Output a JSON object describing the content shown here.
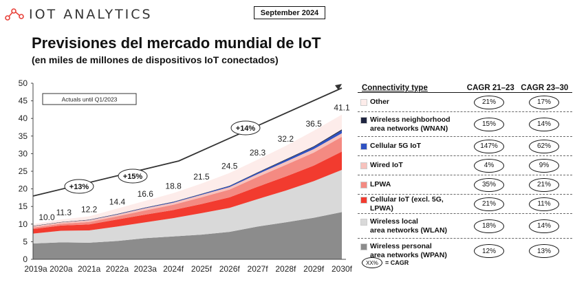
{
  "brand": {
    "logo_text": "IOT ANALYTICS"
  },
  "date_label": "September 2024",
  "title": "Previsiones del mercado mundial de IoT",
  "subtitle": "(en miles de millones de dispositivos IoT conectados)",
  "chart_data": {
    "type": "area",
    "stacked": true,
    "categories": [
      "2019a",
      "2020a",
      "2021a",
      "2022a",
      "2023a",
      "2024f",
      "2025f",
      "2026f",
      "2027f",
      "2028f",
      "2029f",
      "2030f"
    ],
    "totals": [
      10.0,
      11.3,
      12.2,
      14.4,
      16.6,
      18.8,
      21.5,
      24.5,
      28.3,
      32.2,
      36.5,
      41.1
    ],
    "ylim": [
      0,
      50
    ],
    "yticks": [
      0,
      5,
      10,
      15,
      20,
      25,
      30,
      35,
      40,
      45,
      50
    ],
    "grid": false,
    "annotation_box": "Actuals until Q1/2023",
    "trend_labels": [
      "+13%",
      "+15%",
      "+14%"
    ],
    "series": [
      {
        "name": "Wireless personal area networks (WPAN)",
        "color": "#8c8c8c",
        "values": [
          4.5,
          4.8,
          4.7,
          5.2,
          6.0,
          6.5,
          7.0,
          7.8,
          9.3,
          10.5,
          11.8,
          13.4
        ]
      },
      {
        "name": "Wireless local area networks (WLAN)",
        "color": "#d9d9d9",
        "values": [
          2.8,
          3.3,
          3.5,
          4.1,
          4.5,
          5.2,
          6.1,
          6.8,
          7.8,
          9.0,
          10.4,
          12.0
        ]
      },
      {
        "name": "Cellular IoT (excl. 5G, LPWA)",
        "color": "#f23b2f",
        "values": [
          1.3,
          1.5,
          1.7,
          2.0,
          2.2,
          2.3,
          2.6,
          3.0,
          3.5,
          4.0,
          4.4,
          5.2
        ]
      },
      {
        "name": "LPWA",
        "color": "#f48a82",
        "values": [
          0.4,
          0.5,
          0.7,
          0.9,
          1.2,
          1.5,
          1.9,
          2.2,
          2.8,
          3.3,
          3.7,
          4.2
        ]
      },
      {
        "name": "Wired IoT",
        "color": "#f7c2bd",
        "values": [
          0.4,
          0.4,
          0.5,
          0.5,
          0.6,
          0.6,
          0.7,
          0.7,
          0.8,
          0.9,
          1.0,
          1.0
        ]
      },
      {
        "name": "Cellular 5G IoT",
        "color": "#2f52c2",
        "values": [
          0.0,
          0.0,
          0.05,
          0.1,
          0.12,
          0.15,
          0.2,
          0.3,
          0.35,
          0.5,
          0.6,
          0.8
        ]
      },
      {
        "name": "Wireless neighborhood area networks (WNAN)",
        "color": "#1f2540",
        "values": [
          0.1,
          0.1,
          0.1,
          0.1,
          0.1,
          0.1,
          0.1,
          0.1,
          0.15,
          0.2,
          0.2,
          0.3
        ]
      },
      {
        "name": "Other",
        "color": "#fdecea",
        "values": [
          0.5,
          0.7,
          0.95,
          1.5,
          1.88,
          2.45,
          2.9,
          3.6,
          3.6,
          3.8,
          4.4,
          4.2
        ]
      }
    ]
  },
  "legend": {
    "header": {
      "type": "Connectivity type",
      "cagr1": "CAGR 21–23",
      "cagr2": "CAGR 23–30"
    },
    "rows": [
      {
        "lines": [
          "Other"
        ],
        "color": "#fdecea",
        "cagr1": "21%",
        "cagr2": "17%"
      },
      {
        "lines": [
          "Wireless neighborhood",
          "area networks (WNAN)"
        ],
        "color": "#1f2540",
        "cagr1": "15%",
        "cagr2": "14%"
      },
      {
        "lines": [
          "Cellular 5G IoT"
        ],
        "color": "#2f52c2",
        "cagr1": "147%",
        "cagr2": "62%"
      },
      {
        "lines": [
          "Wired IoT"
        ],
        "color": "#f7c2bd",
        "cagr1": "4%",
        "cagr2": "9%"
      },
      {
        "lines": [
          "LPWA"
        ],
        "color": "#f48a82",
        "cagr1": "35%",
        "cagr2": "21%"
      },
      {
        "lines": [
          "Cellular IoT (excl. 5G, LPWA)"
        ],
        "color": "#f23b2f",
        "cagr1": "21%",
        "cagr2": "11%"
      },
      {
        "lines": [
          "Wireless local",
          "area networks (WLAN)"
        ],
        "color": "#d9d9d9",
        "cagr1": "18%",
        "cagr2": "14%"
      },
      {
        "lines": [
          "Wireless personal",
          "area networks (WPAN)"
        ],
        "color": "#8c8c8c",
        "cagr1": "12%",
        "cagr2": "13%"
      }
    ],
    "key_symbol": "XX%",
    "key_text": "= CAGR"
  }
}
